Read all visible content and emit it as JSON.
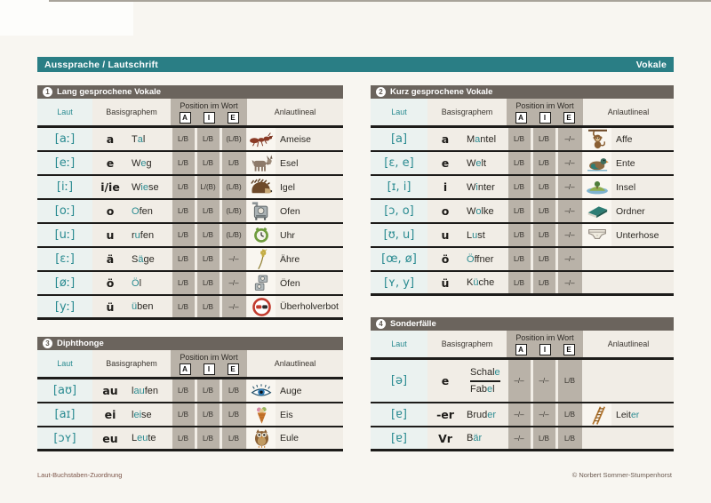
{
  "page": {
    "title": "Aussprache / Lautschrift",
    "subject": "Vokale",
    "footer_left": "Laut-Buchstaben-Zuordnung",
    "footer_right": "© Norbert Sommer-Stumpenhorst"
  },
  "colors": {
    "teal_bar": "#2a7e85",
    "teal_letter": "#2a8b91",
    "table_header_gray": "#6b645d",
    "position_stripe": "#b9b2a8",
    "row_beige": "#f1ede6",
    "laut_cell": "#ebf2f0"
  },
  "columns": {
    "laut": "Laut",
    "basisgraphem": "Basisgraphem",
    "position": "Position im Wort",
    "position_letters": [
      "A",
      "I",
      "E"
    ],
    "anlaut": "Anlautlineal"
  },
  "tables": [
    {
      "number": "1",
      "title": "Lang gesprochene Vokale",
      "rows": [
        {
          "laut": "[aː]",
          "grapheme": "a",
          "word": [
            [
              "T",
              0
            ],
            [
              "a",
              1
            ],
            [
              "l",
              0
            ]
          ],
          "pos": [
            "L/B",
            "L/B",
            "(L/B)"
          ],
          "icon": "ant-icon",
          "anlaut": [
            [
              "Ameise",
              0
            ]
          ]
        },
        {
          "laut": "[eː]",
          "grapheme": "e",
          "word": [
            [
              "W",
              0
            ],
            [
              "e",
              1
            ],
            [
              "g",
              0
            ]
          ],
          "pos": [
            "L/B",
            "L/B",
            "L/B"
          ],
          "icon": "donkey-icon",
          "anlaut": [
            [
              "Esel",
              0
            ]
          ]
        },
        {
          "laut": "[iː]",
          "grapheme": "i/ie",
          "word": [
            [
              "W",
              0
            ],
            [
              "ie",
              1
            ],
            [
              "se",
              0
            ]
          ],
          "pos": [
            "L/B",
            "L/(B)",
            "(L/B)"
          ],
          "icon": "hedgehog-icon",
          "anlaut": [
            [
              "Igel",
              0
            ]
          ]
        },
        {
          "laut": "[oː]",
          "grapheme": "o",
          "word": [
            [
              "O",
              1
            ],
            [
              "fen",
              0
            ]
          ],
          "pos": [
            "L/B",
            "L/B",
            "(L/B)"
          ],
          "icon": "oven-icon",
          "anlaut": [
            [
              "Ofen",
              0
            ]
          ]
        },
        {
          "laut": "[uː]",
          "grapheme": "u",
          "word": [
            [
              "r",
              0
            ],
            [
              "u",
              1
            ],
            [
              "fen",
              0
            ]
          ],
          "pos": [
            "L/B",
            "L/B",
            "(L/B)"
          ],
          "icon": "clock-icon",
          "anlaut": [
            [
              "Uhr",
              0
            ]
          ]
        },
        {
          "laut": "[ɛː]",
          "grapheme": "ä",
          "word": [
            [
              "S",
              0
            ],
            [
              "ä",
              1
            ],
            [
              "ge",
              0
            ]
          ],
          "pos": [
            "L/B",
            "L/B",
            "–/–"
          ],
          "icon": "wheat-ear-icon",
          "anlaut": [
            [
              "Ähre",
              0
            ]
          ]
        },
        {
          "laut": "[øː]",
          "grapheme": "ö",
          "word": [
            [
              "Ö",
              1
            ],
            [
              "l",
              0
            ]
          ],
          "pos": [
            "L/B",
            "L/B",
            "–/–"
          ],
          "icon": "ovens-icon",
          "anlaut": [
            [
              "Öfen",
              0
            ]
          ]
        },
        {
          "laut": "[yː]",
          "grapheme": "ü",
          "word": [
            [
              "ü",
              1
            ],
            [
              "ben",
              0
            ]
          ],
          "pos": [
            "L/B",
            "L/B",
            "–/–"
          ],
          "icon": "no-overtaking-sign-icon",
          "anlaut": [
            [
              "Überholverbot",
              0
            ]
          ]
        }
      ]
    },
    {
      "number": "2",
      "title": "Kurz gesprochene Vokale",
      "rows": [
        {
          "laut": "[a]",
          "grapheme": "a",
          "word": [
            [
              "M",
              0
            ],
            [
              "a",
              1
            ],
            [
              "ntel",
              0
            ]
          ],
          "pos": [
            "L/B",
            "L/B",
            "–/–"
          ],
          "icon": "monkey-icon",
          "anlaut": [
            [
              "Affe",
              0
            ]
          ]
        },
        {
          "laut": "[ɛ, e]",
          "grapheme": "e",
          "word": [
            [
              "W",
              0
            ],
            [
              "e",
              1
            ],
            [
              "lt",
              0
            ]
          ],
          "pos": [
            "L/B",
            "L/B",
            "–/–"
          ],
          "icon": "duck-icon",
          "anlaut": [
            [
              "Ente",
              0
            ]
          ]
        },
        {
          "laut": "[ɪ, i]",
          "grapheme": "i",
          "word": [
            [
              "W",
              0
            ],
            [
              "i",
              1
            ],
            [
              "nter",
              0
            ]
          ],
          "pos": [
            "L/B",
            "L/B",
            "–/–"
          ],
          "icon": "island-icon",
          "anlaut": [
            [
              "Insel",
              0
            ]
          ]
        },
        {
          "laut": "[ɔ, o]",
          "grapheme": "o",
          "word": [
            [
              "W",
              0
            ],
            [
              "o",
              1
            ],
            [
              "lke",
              0
            ]
          ],
          "pos": [
            "L/B",
            "L/B",
            "–/–"
          ],
          "icon": "folder-icon",
          "anlaut": [
            [
              "Ordner",
              0
            ]
          ]
        },
        {
          "laut": "[ʊ, u]",
          "grapheme": "u",
          "word": [
            [
              "L",
              0
            ],
            [
              "u",
              1
            ],
            [
              "st",
              0
            ]
          ],
          "pos": [
            "L/B",
            "L/B",
            "–/–"
          ],
          "icon": "underpants-icon",
          "anlaut": [
            [
              "Unterhose",
              0
            ]
          ]
        },
        {
          "laut": "[œ, ø]",
          "grapheme": "ö",
          "word": [
            [
              "Ö",
              1
            ],
            [
              "ffner",
              0
            ]
          ],
          "pos": [
            "L/B",
            "L/B",
            "–/–"
          ],
          "icon": null,
          "anlaut": null
        },
        {
          "laut": "[ʏ, y]",
          "grapheme": "ü",
          "word": [
            [
              "K",
              0
            ],
            [
              "ü",
              1
            ],
            [
              "che",
              0
            ]
          ],
          "pos": [
            "L/B",
            "L/B",
            "–/–"
          ],
          "icon": null,
          "anlaut": null
        }
      ]
    },
    {
      "number": "3",
      "title": "Diphthonge",
      "rows": [
        {
          "laut": "[aʊ]",
          "grapheme": "au",
          "word": [
            [
              "l",
              0
            ],
            [
              "au",
              1
            ],
            [
              "fen",
              0
            ]
          ],
          "pos": [
            "L/B",
            "L/B",
            "L/B"
          ],
          "icon": "eye-icon",
          "anlaut": [
            [
              "Auge",
              0
            ]
          ]
        },
        {
          "laut": "[aɪ]",
          "grapheme": "ei",
          "word": [
            [
              "l",
              0
            ],
            [
              "ei",
              1
            ],
            [
              "se",
              0
            ]
          ],
          "pos": [
            "L/B",
            "L/B",
            "L/B"
          ],
          "icon": "ice-cream-icon",
          "anlaut": [
            [
              "Eis",
              0
            ]
          ]
        },
        {
          "laut": "[ɔʏ]",
          "grapheme": "eu",
          "word": [
            [
              "L",
              0
            ],
            [
              "eu",
              1
            ],
            [
              "te",
              0
            ]
          ],
          "pos": [
            "L/B",
            "L/B",
            "L/B"
          ],
          "icon": "owl-icon",
          "anlaut": [
            [
              "Eule",
              0
            ]
          ]
        }
      ]
    },
    {
      "number": "4",
      "title": "Sonderfälle",
      "rows": [
        {
          "laut": "[ə]",
          "grapheme": "e",
          "words": [
            [
              [
                "Schal",
                0
              ],
              [
                "e",
                1
              ]
            ],
            [
              [
                "Fab",
                0
              ],
              [
                "e",
                1
              ],
              [
                "l",
                0
              ]
            ]
          ],
          "pos": [
            "–/–",
            "–/–",
            "L/B"
          ],
          "icon": null,
          "anlaut": null,
          "tall": true
        },
        {
          "laut": "[ɐ]",
          "grapheme": "-er",
          "word": [
            [
              "Brud",
              0
            ],
            [
              "er",
              1
            ]
          ],
          "pos": [
            "–/–",
            "–/–",
            "L/B"
          ],
          "icon": "ladder-icon",
          "anlaut": [
            [
              "Leit",
              0
            ],
            [
              "er",
              1
            ]
          ]
        },
        {
          "laut": "[ɐ]",
          "grapheme": "Vr",
          "word": [
            [
              "B",
              0
            ],
            [
              "är",
              1
            ]
          ],
          "pos": [
            "–/–",
            "L/B",
            "L/B"
          ],
          "icon": null,
          "anlaut": null
        }
      ]
    }
  ]
}
